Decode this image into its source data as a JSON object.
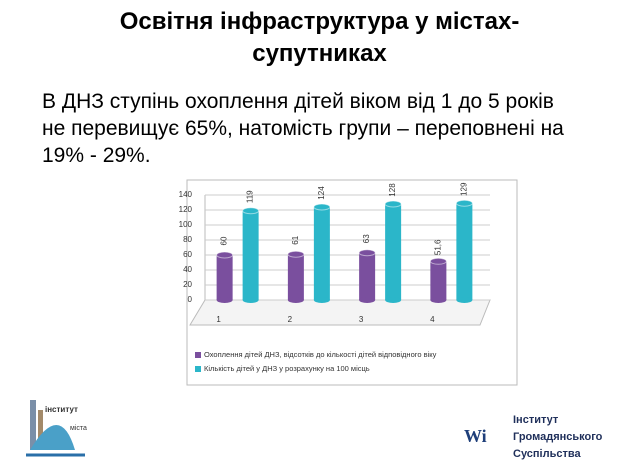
{
  "title": "Освітня інфраструктура у містах-супутниках",
  "body": "В ДНЗ ступінь охоплення дітей віком від 1 до 5 років не перевищує 65%, натомість групи – переповнені на 19% - 29%.",
  "chart_data": {
    "type": "bar",
    "categories": [
      "1",
      "2",
      "3",
      "4"
    ],
    "series": [
      {
        "name": "Охоплення дітей ДНЗ, відсотків до кількості дітей відповідного віку",
        "color": "#7a4f9e",
        "values": [
          60,
          61,
          63,
          51.6
        ],
        "value_labels": [
          "60",
          "61",
          "63",
          "51,6"
        ]
      },
      {
        "name": "Кількість дітей у ДНЗ у розрахунку на 100 місць",
        "color": "#2bb6c9",
        "values": [
          119,
          124,
          128,
          129
        ]
      }
    ],
    "ylim": [
      0,
      140
    ],
    "yticks": [
      0,
      20,
      40,
      60,
      80,
      100,
      120,
      140
    ],
    "grid": true
  },
  "logos": {
    "left": [
      "інститут",
      "міста"
    ],
    "right": [
      "Інститут",
      "Громадянського",
      "Суспільства"
    ]
  }
}
